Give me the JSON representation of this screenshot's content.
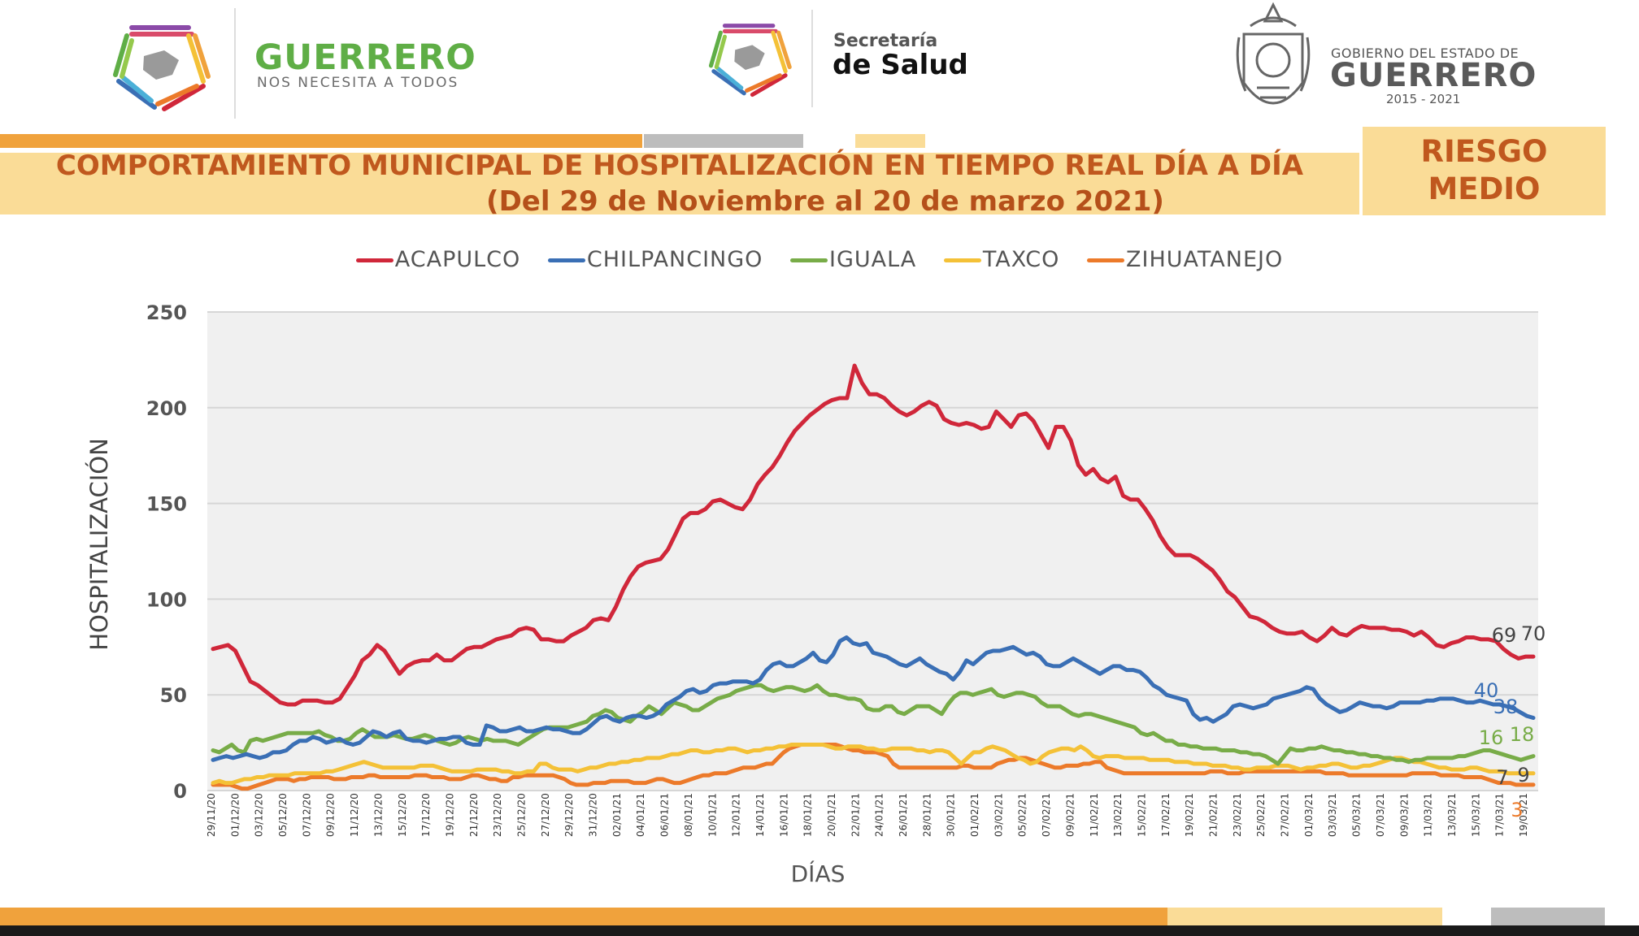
{
  "header": {
    "left_brand_name": "GUERRERO",
    "left_brand_tagline": "NOS NECESITA A TODOS",
    "center_brand_top": "Secretaría",
    "center_brand_bottom": "de Salud",
    "right_brand_top": "GOBIERNO DEL ESTADO DE",
    "right_brand_name": "GUERRERO",
    "right_brand_years": "2015 - 2021"
  },
  "title": {
    "line1": "COMPORTAMIENTO MUNICIPAL DE HOSPITALIZACIÓN EN TIEMPO REAL DÍA A DÍA",
    "line2": "(Del 29 de Noviembre al 20 de marzo 2021)"
  },
  "risk": {
    "line1": "RIESGO",
    "line2": "MEDIO"
  },
  "colors": {
    "orange": "#f0a23c",
    "light_yellow": "#fadc97",
    "title_text": "#c0581e",
    "acapulco": "#d0273a",
    "chilpancingo": "#3a6fb5",
    "iguala": "#78ac48",
    "taxco": "#f4c137",
    "zihuatanejo": "#ec7a2a"
  },
  "chart_data": {
    "type": "line",
    "xlabel": "DÍAS",
    "ylabel": "HOSPITALIZACIÓN",
    "ylim": [
      0,
      250
    ],
    "yticks": [
      "0",
      "50",
      "100",
      "150",
      "200",
      "250"
    ],
    "grid": true,
    "legend_position": "top",
    "start_date": "2020-11-29",
    "end_date": "2021-03-20",
    "x_tick_labels": [
      "29/11/20",
      "01/12/20",
      "03/12/20",
      "05/12/20",
      "07/12/20",
      "09/12/20",
      "11/12/20",
      "13/12/20",
      "15/12/20",
      "17/12/20",
      "19/12/20",
      "21/12/20",
      "23/12/20",
      "25/12/20",
      "27/12/20",
      "29/12/20",
      "31/12/20",
      "02/01/21",
      "04/01/21",
      "06/01/21",
      "08/01/21",
      "10/01/21",
      "12/01/21",
      "14/01/21",
      "16/01/21",
      "18/01/21",
      "20/01/21",
      "22/01/21",
      "24/01/21",
      "26/01/21",
      "28/01/21",
      "30/01/21",
      "01/02/21",
      "03/02/21",
      "05/02/21",
      "07/02/21",
      "09/02/21",
      "11/02/21",
      "13/02/21",
      "15/02/21",
      "17/02/21",
      "19/02/21",
      "21/02/21",
      "23/02/21",
      "25/02/21",
      "27/02/21",
      "01/03/21",
      "03/03/21",
      "05/03/21",
      "07/03/21",
      "09/03/21",
      "11/03/21",
      "13/03/21",
      "15/03/21",
      "17/03/21",
      "19/03/21"
    ],
    "series": [
      {
        "name": "ACAPULCO",
        "color": "#d0273a",
        "values": [
          74,
          75,
          76,
          73,
          65,
          57,
          55,
          52,
          49,
          46,
          45,
          45,
          47,
          47,
          47,
          46,
          46,
          48,
          54,
          60,
          68,
          71,
          76,
          73,
          67,
          61,
          65,
          67,
          68,
          68,
          71,
          68,
          68,
          71,
          74,
          75,
          75,
          77,
          79,
          80,
          81,
          84,
          85,
          84,
          79,
          79,
          78,
          78,
          81,
          83,
          85,
          89,
          90,
          89,
          96,
          105,
          112,
          117,
          119,
          120,
          121,
          126,
          134,
          142,
          145,
          145,
          147,
          151,
          152,
          150,
          148,
          147,
          152,
          160,
          165,
          169,
          175,
          182,
          188,
          192,
          196,
          199,
          202,
          204,
          205,
          205,
          222,
          213,
          207,
          207,
          205,
          201,
          198,
          196,
          198,
          201,
          203,
          201,
          194,
          192,
          191,
          192,
          191,
          189,
          190,
          198,
          194,
          190,
          196,
          197,
          193,
          186,
          179,
          190,
          190,
          183,
          170,
          165,
          168,
          163,
          161,
          164,
          154,
          152,
          152,
          147,
          141,
          133,
          127,
          123,
          123,
          123,
          121,
          118,
          115,
          110,
          104,
          101,
          96,
          91,
          90,
          88,
          85,
          83,
          82,
          82,
          83,
          80,
          78,
          81,
          85,
          82,
          81,
          84,
          86,
          85,
          85,
          85,
          84,
          84,
          83,
          81,
          83,
          80,
          76,
          75,
          77,
          78,
          80,
          80,
          79,
          79,
          78,
          74,
          71,
          69,
          70,
          70
        ]
      },
      {
        "name": "CHILPANCINGO",
        "color": "#3a6fb5",
        "values": [
          16,
          17,
          18,
          17,
          18,
          19,
          18,
          17,
          18,
          20,
          20,
          21,
          24,
          26,
          26,
          28,
          27,
          25,
          26,
          27,
          25,
          24,
          25,
          28,
          31,
          30,
          28,
          30,
          31,
          27,
          26,
          26,
          25,
          26,
          27,
          27,
          28,
          28,
          25,
          24,
          24,
          34,
          33,
          31,
          31,
          32,
          33,
          31,
          31,
          32,
          33,
          32,
          32,
          31,
          30,
          30,
          32,
          35,
          38,
          39,
          37,
          36,
          38,
          39,
          39,
          38,
          39,
          41,
          45,
          47,
          49,
          52,
          53,
          51,
          52,
          55,
          56,
          56,
          57,
          57,
          57,
          56,
          58,
          63,
          66,
          67,
          65,
          65,
          67,
          69,
          72,
          68,
          67,
          71,
          78,
          80,
          77,
          76,
          77,
          72,
          71,
          70,
          68,
          66,
          65,
          67,
          69,
          66,
          64,
          62,
          61,
          58,
          62,
          68,
          66,
          69,
          72,
          73,
          73,
          74,
          75,
          73,
          71,
          72,
          70,
          66,
          65,
          65,
          67,
          69,
          67,
          65,
          63,
          61,
          63,
          65,
          65,
          63,
          63,
          62,
          59,
          55,
          53,
          50,
          49,
          48,
          47,
          40,
          37,
          38,
          36,
          38,
          40,
          44,
          45,
          44,
          43,
          44,
          45,
          48,
          49,
          50,
          51,
          52,
          54,
          53,
          48,
          45,
          43,
          41,
          42,
          44,
          46,
          45,
          44,
          44,
          43,
          44,
          46,
          46,
          46,
          46,
          47,
          47,
          48,
          48,
          48,
          47,
          46,
          46,
          47,
          46,
          45,
          45,
          44,
          43,
          41,
          39,
          38
        ]
      },
      {
        "name": "IGUALA",
        "color": "#78ac48",
        "values": [
          21,
          20,
          22,
          24,
          21,
          20,
          26,
          27,
          26,
          27,
          28,
          29,
          30,
          30,
          30,
          30,
          30,
          31,
          29,
          28,
          26,
          26,
          27,
          30,
          32,
          30,
          28,
          28,
          28,
          29,
          28,
          27,
          27,
          28,
          29,
          28,
          26,
          25,
          24,
          25,
          27,
          28,
          27,
          26,
          27,
          26,
          26,
          26,
          25,
          24,
          26,
          28,
          30,
          32,
          33,
          33,
          33,
          33,
          34,
          35,
          36,
          39,
          40,
          42,
          41,
          38,
          37,
          36,
          39,
          41,
          44,
          42,
          40,
          43,
          46,
          45,
          44,
          42,
          42,
          44,
          46,
          48,
          49,
          50,
          52,
          53,
          54,
          55,
          55,
          53,
          52,
          53,
          54,
          54,
          53,
          52,
          53,
          55,
          52,
          50,
          50,
          49,
          48,
          48,
          47,
          43,
          42,
          42,
          44,
          44,
          41,
          40,
          42,
          44,
          44,
          44,
          42,
          40,
          45,
          49,
          51,
          51,
          50,
          51,
          52,
          53,
          50,
          49,
          50,
          51,
          51,
          50,
          49,
          46,
          44,
          44,
          44,
          42,
          40,
          39,
          40,
          40,
          39,
          38,
          37,
          36,
          35,
          34,
          33,
          30,
          29,
          30,
          28,
          26,
          26,
          24,
          24,
          23,
          23,
          22,
          22,
          22,
          21,
          21,
          21,
          20,
          20,
          19,
          19,
          18,
          16,
          14,
          18,
          22,
          21,
          21,
          22,
          22,
          23,
          22,
          21,
          21,
          20,
          20,
          19,
          19,
          18,
          18,
          17,
          17,
          16,
          16,
          15,
          16,
          16,
          17,
          17,
          17,
          17,
          17,
          18,
          18,
          19,
          20,
          21,
          21,
          20,
          19,
          18,
          17,
          16,
          17,
          18
        ]
      },
      {
        "name": "TAXCO",
        "color": "#f4c137",
        "values": [
          4,
          5,
          4,
          4,
          5,
          6,
          6,
          7,
          7,
          8,
          8,
          8,
          8,
          9,
          9,
          9,
          9,
          9,
          10,
          10,
          11,
          12,
          13,
          14,
          15,
          14,
          13,
          12,
          12,
          12,
          12,
          12,
          12,
          13,
          13,
          13,
          12,
          11,
          10,
          10,
          10,
          10,
          11,
          11,
          11,
          11,
          10,
          10,
          9,
          9,
          10,
          10,
          14,
          14,
          12,
          11,
          11,
          11,
          10,
          11,
          12,
          12,
          13,
          14,
          14,
          15,
          15,
          16,
          16,
          17,
          17,
          17,
          18,
          19,
          19,
          20,
          21,
          21,
          20,
          20,
          21,
          21,
          22,
          22,
          21,
          20,
          21,
          21,
          22,
          22,
          23,
          23,
          24,
          24,
          24,
          24,
          24,
          24,
          23,
          22,
          22,
          23,
          23,
          23,
          22,
          22,
          21,
          21,
          22,
          22,
          22,
          22,
          21,
          21,
          20,
          21,
          21,
          20,
          17,
          14,
          17,
          20,
          20,
          22,
          23,
          22,
          21,
          19,
          17,
          16,
          14,
          15,
          18,
          20,
          21,
          22,
          22,
          21,
          23,
          21,
          18,
          17,
          18,
          18,
          18,
          17,
          17,
          17,
          17,
          16,
          16,
          16,
          16,
          15,
          15,
          15,
          14,
          14,
          14,
          13,
          13,
          13,
          12,
          12,
          11,
          11,
          12,
          12,
          12,
          13,
          13,
          13,
          12,
          11,
          12,
          12,
          13,
          13,
          14,
          14,
          13,
          12,
          12,
          13,
          13,
          14,
          15,
          16,
          17,
          17,
          16,
          15,
          15,
          14,
          13,
          12,
          12,
          11,
          11,
          11,
          12,
          12,
          11,
          10,
          10,
          10,
          9,
          9,
          9,
          9,
          9
        ]
      },
      {
        "name": "ZIHUATANEJO",
        "color": "#ec7a2a",
        "values": [
          3,
          3,
          3,
          3,
          2,
          1,
          1,
          2,
          3,
          4,
          5,
          6,
          6,
          6,
          5,
          6,
          6,
          7,
          7,
          7,
          7,
          6,
          6,
          6,
          7,
          7,
          7,
          8,
          8,
          7,
          7,
          7,
          7,
          7,
          7,
          8,
          8,
          8,
          7,
          7,
          7,
          6,
          6,
          6,
          7,
          8,
          8,
          7,
          6,
          6,
          5,
          5,
          7,
          7,
          8,
          8,
          8,
          8,
          8,
          8,
          7,
          6,
          4,
          3,
          3,
          3,
          4,
          4,
          4,
          5,
          5,
          5,
          5,
          4,
          4,
          4,
          5,
          6,
          6,
          5,
          4,
          4,
          5,
          6,
          7,
          8,
          8,
          9,
          9,
          9,
          10,
          11,
          12,
          12,
          12,
          13,
          14,
          14,
          17,
          20,
          22,
          23,
          24,
          24,
          24,
          24,
          24,
          24,
          24,
          23,
          22,
          21,
          21,
          20,
          20,
          20,
          19,
          18,
          14,
          12,
          12,
          12,
          12,
          12,
          12,
          12,
          12,
          12,
          12,
          12,
          13,
          13,
          12,
          12,
          12,
          12,
          14,
          15,
          16,
          16,
          17,
          17,
          16,
          15,
          14,
          13,
          12,
          12,
          13,
          13,
          13,
          14,
          14,
          15,
          15,
          12,
          11,
          10,
          9,
          9,
          9,
          9,
          9,
          9,
          9,
          9,
          9,
          9,
          9,
          9,
          9,
          9,
          9,
          10,
          10,
          10,
          9,
          9,
          9,
          10,
          10,
          10,
          10,
          10,
          10,
          10,
          10,
          10,
          10,
          10,
          10,
          10,
          10,
          9,
          9,
          9,
          9,
          8,
          8,
          8,
          8,
          8,
          8,
          8,
          8,
          8,
          8,
          8,
          9,
          9,
          9,
          9,
          9,
          8,
          8,
          8,
          8,
          7,
          7,
          7,
          7,
          6,
          5,
          4,
          4,
          4,
          3,
          3,
          3,
          3
        ]
      }
    ],
    "end_labels": [
      {
        "series": "ACAPULCO",
        "labels": [
          "69",
          "70"
        ],
        "color": "#444444"
      },
      {
        "series": "CHILPANCINGO",
        "labels": [
          "40",
          "38"
        ],
        "color": "#3a6fb5"
      },
      {
        "series": "IGUALA",
        "labels": [
          "16",
          "18"
        ],
        "color": "#78ac48"
      },
      {
        "series": "TAXCO",
        "labels": [
          "7",
          "9"
        ],
        "color": "#444444"
      },
      {
        "series": "ZIHUATANEJO",
        "labels": [
          "3"
        ],
        "color": "#ec7a2a"
      }
    ]
  }
}
